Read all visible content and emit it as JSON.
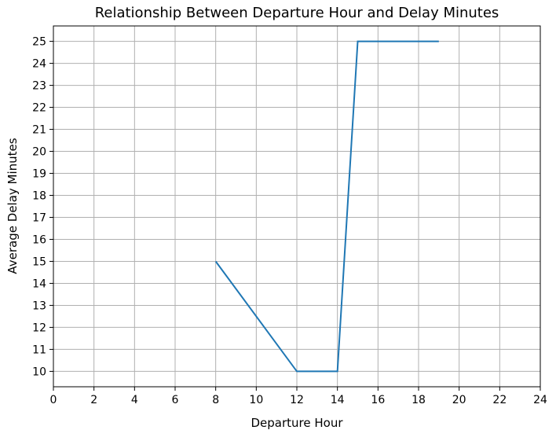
{
  "chart_data": {
    "type": "line",
    "title": "Relationship Between Departure Hour and Delay Minutes",
    "xlabel": "Departure Hour",
    "ylabel": "Average Delay Minutes",
    "xlim": [
      0,
      24
    ],
    "ylim": [
      9.3,
      25.7
    ],
    "x_ticks": [
      "0",
      "2",
      "4",
      "6",
      "8",
      "10",
      "12",
      "14",
      "16",
      "18",
      "20",
      "22",
      "24"
    ],
    "y_ticks": [
      "10",
      "11",
      "12",
      "13",
      "14",
      "15",
      "16",
      "17",
      "18",
      "19",
      "20",
      "21",
      "22",
      "23",
      "24",
      "25"
    ],
    "grid": true,
    "series": [
      {
        "x": [
          8,
          12,
          14,
          15,
          19
        ],
        "y": [
          15,
          10,
          10,
          25,
          25
        ],
        "color": "#1f77b4"
      }
    ]
  }
}
